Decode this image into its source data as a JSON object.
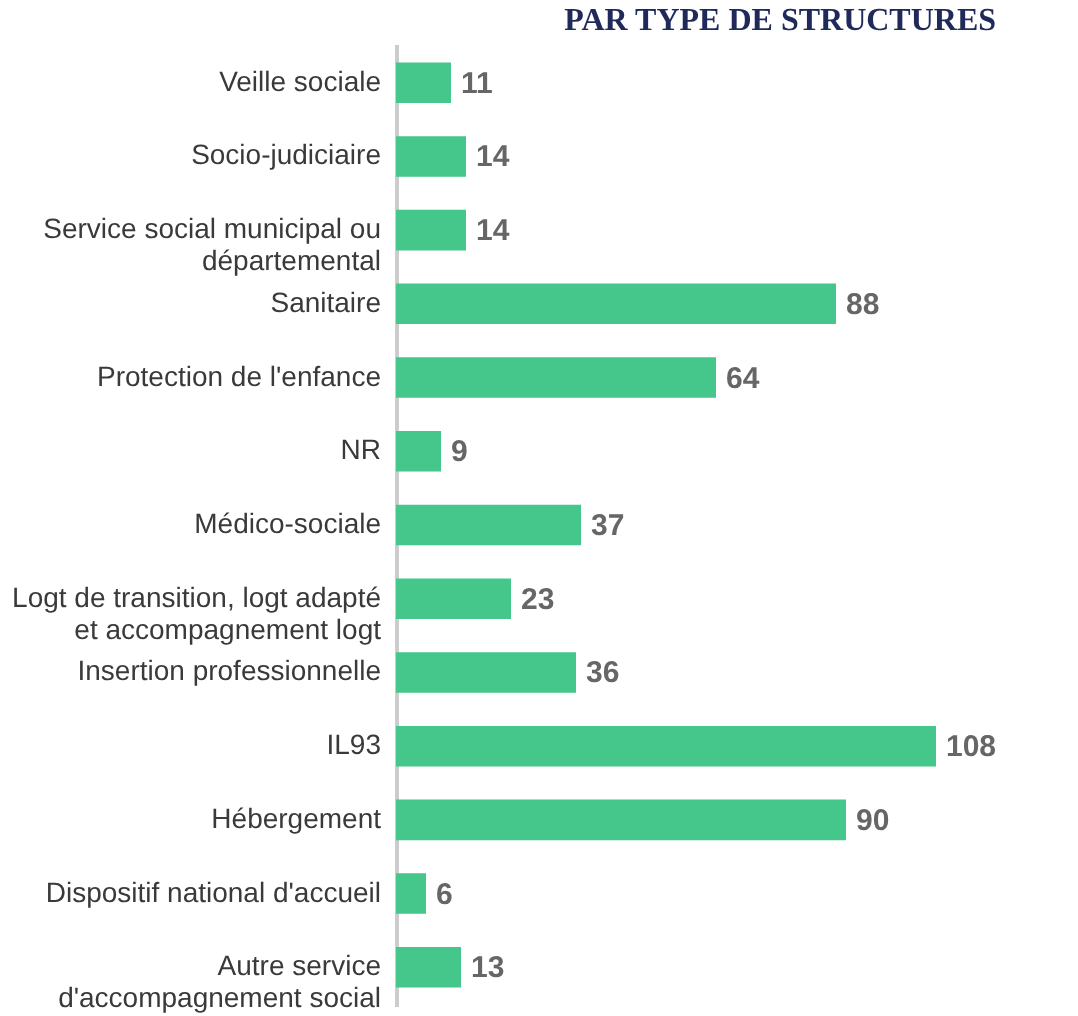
{
  "chart_data": {
    "type": "bar",
    "orientation": "horizontal",
    "title": "PAR TYPE DE STRUCTURES",
    "categories": [
      "Veille sociale",
      "Socio-judiciaire",
      "Service social municipal ou\ndépartemental",
      "Sanitaire",
      "Protection de l'enfance",
      "NR",
      "Médico-sociale",
      "Logt de transition, logt adapté\net accompagnement logt",
      "Insertion professionnelle",
      "IL93",
      "Hébergement",
      "Dispositif national d'accueil",
      "Autre service\nd'accompagnement social"
    ],
    "values": [
      11,
      14,
      14,
      88,
      64,
      9,
      37,
      23,
      36,
      108,
      90,
      6,
      13
    ],
    "color": "#45c68b",
    "tick_labels": "y",
    "data_labels": true
  }
}
